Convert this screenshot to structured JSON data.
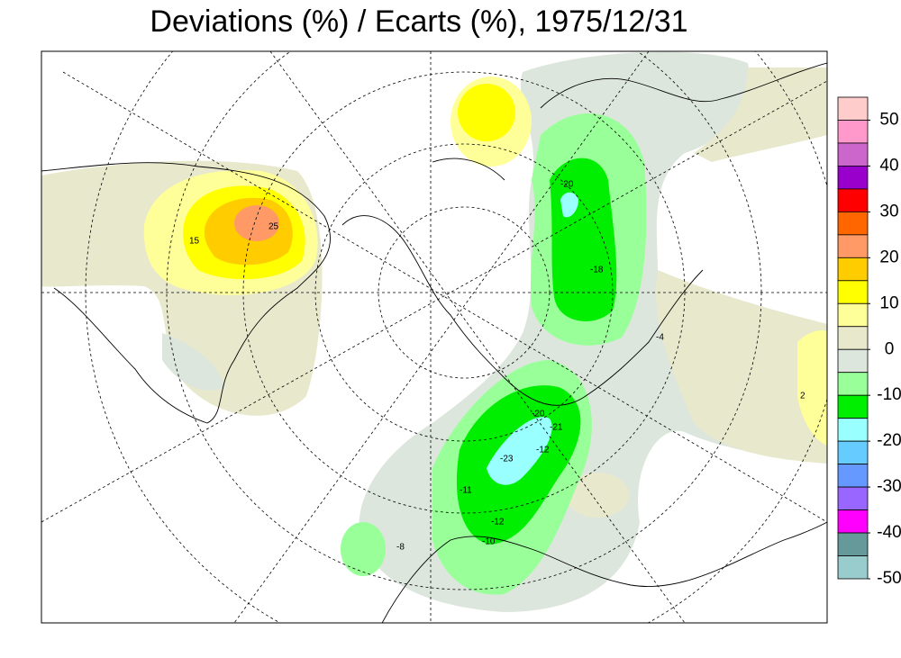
{
  "title": "Deviations (%) / Ecarts (%), 1975/12/31",
  "colorbar": {
    "levels": [
      55,
      50,
      45,
      40,
      35,
      30,
      25,
      20,
      15,
      10,
      5,
      0,
      -5,
      -10,
      -15,
      -20,
      -25,
      -30,
      -35,
      -40,
      -45,
      -50
    ],
    "colors": [
      "#ffcccc",
      "#ff99cc",
      "#cc66cc",
      "#9900cc",
      "#ff0000",
      "#ff6600",
      "#ff9966",
      "#ffcc00",
      "#ffff00",
      "#ffff99",
      "#e8e8cc",
      "#dde6dd",
      "#99ff99",
      "#00ee00",
      "#99ffff",
      "#66ccff",
      "#6699ff",
      "#9966ff",
      "#ff00ff",
      "#669999",
      "#99cccc"
    ],
    "ticks": [
      50,
      40,
      30,
      20,
      10,
      0,
      -10,
      -20,
      -30,
      -40,
      -50
    ]
  },
  "contour_labels": [
    "25",
    "15",
    "-20",
    "-18",
    "-23",
    "-21",
    "-12",
    "-20",
    "-11",
    "-12",
    "-10",
    "-8",
    "2",
    "-4"
  ]
}
